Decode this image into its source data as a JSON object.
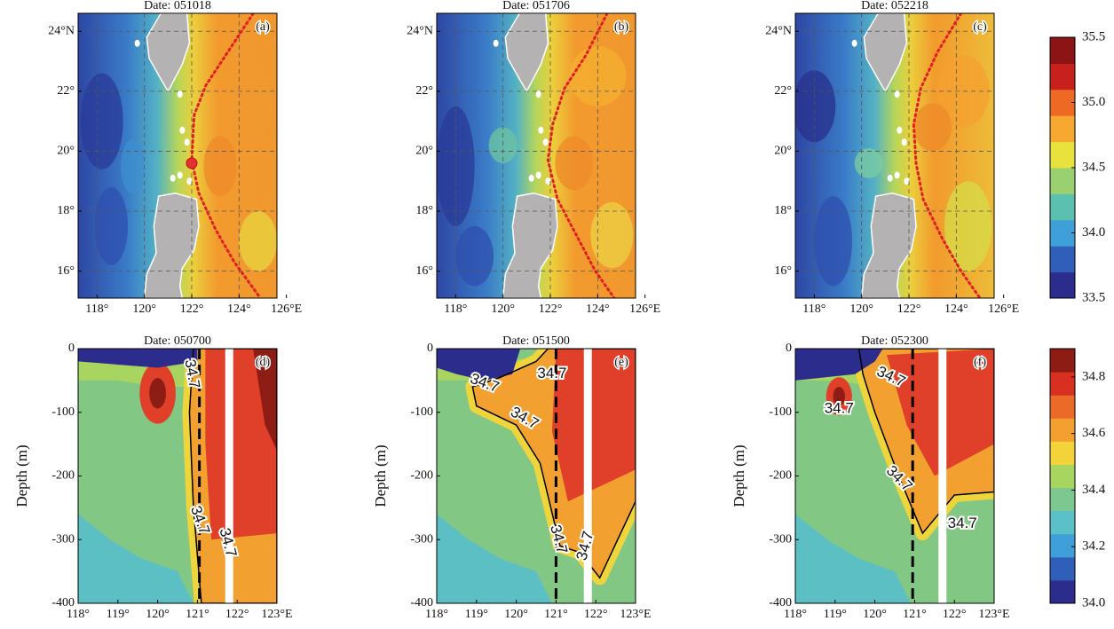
{
  "chart_data": [
    {
      "type": "map",
      "title": "Date: 051018",
      "panel_label": "(a)",
      "xlim": [
        117.2,
        125.6
      ],
      "ylim": [
        15.1,
        24.6
      ],
      "xticks": [
        {
          "value": 118,
          "label": "118°"
        },
        {
          "value": 120,
          "label": "120°"
        },
        {
          "value": 122,
          "label": "122°"
        },
        {
          "value": 124,
          "label": "124°"
        },
        {
          "value": 126,
          "label": "126°E"
        }
      ],
      "yticks": [
        {
          "value": 16,
          "label": "16°"
        },
        {
          "value": 18,
          "label": "18°"
        },
        {
          "value": 20,
          "label": "20°"
        },
        {
          "value": 22,
          "label": "22°"
        },
        {
          "value": 24,
          "label": "24°N"
        }
      ],
      "grid": true
    },
    {
      "type": "map",
      "title": "Date: 051706",
      "panel_label": "(b)",
      "xlim": [
        117.2,
        125.6
      ],
      "ylim": [
        15.1,
        24.6
      ],
      "xticks": [
        {
          "value": 118,
          "label": "118°"
        },
        {
          "value": 120,
          "label": "120°"
        },
        {
          "value": 122,
          "label": "122°"
        },
        {
          "value": 124,
          "label": "124°"
        },
        {
          "value": 126,
          "label": "126°E"
        }
      ],
      "yticks": [
        {
          "value": 16,
          "label": "16°"
        },
        {
          "value": 18,
          "label": "18°"
        },
        {
          "value": 20,
          "label": "20°"
        },
        {
          "value": 22,
          "label": "22°"
        },
        {
          "value": 24,
          "label": "24°N"
        }
      ],
      "grid": true
    },
    {
      "type": "map",
      "title": "Date: 052218",
      "panel_label": "(c)",
      "xlim": [
        117.2,
        125.6
      ],
      "ylim": [
        15.1,
        24.6
      ],
      "xticks": [
        {
          "value": 118,
          "label": "118°"
        },
        {
          "value": 120,
          "label": "120°"
        },
        {
          "value": 122,
          "label": "122°"
        },
        {
          "value": 124,
          "label": "124°"
        },
        {
          "value": 126,
          "label": "126°E"
        }
      ],
      "yticks": [
        {
          "value": 16,
          "label": "16°"
        },
        {
          "value": 18,
          "label": "18°"
        },
        {
          "value": 20,
          "label": "20°"
        },
        {
          "value": 22,
          "label": "22°"
        },
        {
          "value": 24,
          "label": "24°N"
        }
      ],
      "grid": true,
      "colorbar": {
        "lim": [
          33.5,
          35.5
        ],
        "ticks": [
          33.5,
          {
            "value": 34,
            "label": "34.0"
          },
          34.5,
          {
            "value": 35,
            "label": "35.0"
          },
          35.5
        ],
        "colors": [
          "#2b2c8c",
          "#2f5fb8",
          "#3f9fd8",
          "#5cc0b0",
          "#9ad070",
          "#e8e23c",
          "#f6a830",
          "#ee6a24",
          "#c8201c",
          "#8c1414"
        ]
      }
    },
    {
      "type": "section",
      "title": "Date: 050700",
      "panel_label": "(d)",
      "ylabel": "Depth (m)",
      "xlim": [
        118,
        123
      ],
      "ylim": [
        -400,
        0
      ],
      "xticks": [
        {
          "value": 118,
          "label": "118°"
        },
        {
          "value": 119,
          "label": "119°"
        },
        {
          "value": 120,
          "label": "120°"
        },
        {
          "value": 121,
          "label": "121°"
        },
        {
          "value": 122,
          "label": "122°"
        },
        {
          "value": 123,
          "label": "123°E"
        }
      ],
      "yticks": [
        -400,
        -300,
        -200,
        -100,
        0
      ],
      "contour_labels": [
        34.7,
        34.7,
        34.7
      ]
    },
    {
      "type": "section",
      "title": "Date: 051500",
      "panel_label": "(e)",
      "ylabel": "Depth (m)",
      "xlim": [
        118,
        123
      ],
      "ylim": [
        -400,
        0
      ],
      "xticks": [
        {
          "value": 118,
          "label": "118°"
        },
        {
          "value": 119,
          "label": "119°"
        },
        {
          "value": 120,
          "label": "120°"
        },
        {
          "value": 121,
          "label": "121°"
        },
        {
          "value": 122,
          "label": "122°"
        },
        {
          "value": 123,
          "label": "123°E"
        }
      ],
      "yticks": [
        -400,
        -300,
        -200,
        -100,
        0
      ],
      "contour_labels": [
        34.7,
        34.7,
        34.7,
        34.7,
        34.7
      ]
    },
    {
      "type": "section",
      "title": "Date: 052300",
      "panel_label": "(f)",
      "ylabel": "Depth (m)",
      "xlim": [
        118,
        123
      ],
      "ylim": [
        -400,
        0
      ],
      "xticks": [
        {
          "value": 118,
          "label": "118°"
        },
        {
          "value": 119,
          "label": "119°"
        },
        {
          "value": 120,
          "label": "120°"
        },
        {
          "value": 121,
          "label": "121°"
        },
        {
          "value": 122,
          "label": "122°"
        },
        {
          "value": 123,
          "label": "123°E"
        }
      ],
      "yticks": [
        -400,
        -300,
        -200,
        -100,
        0
      ],
      "contour_labels": [
        34.7,
        34.7,
        34.7,
        34.7
      ],
      "colorbar": {
        "lim": [
          34,
          34.9
        ],
        "ticks": [
          {
            "value": 34,
            "label": "34.0"
          },
          34.2,
          34.4,
          34.6,
          34.8
        ],
        "colors": [
          "#2b2c8c",
          "#2f5fb8",
          "#3f9fd8",
          "#5cc0c8",
          "#7cc890",
          "#a8d460",
          "#f2d43a",
          "#f4a030",
          "#ec6a28",
          "#d83020",
          "#8c1c14"
        ]
      }
    }
  ]
}
